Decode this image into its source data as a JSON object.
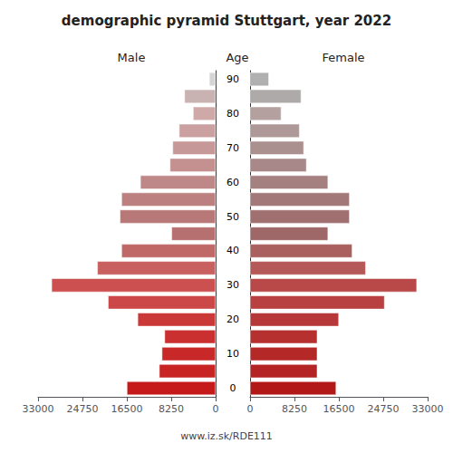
{
  "chart_data": {
    "type": "bar",
    "orientation": "horizontal",
    "title": "demographic pyramid Stuttgart, year 2022",
    "ylabel": "Age",
    "annotations": [
      "www.iz.sk/RDE111"
    ],
    "categories": [
      "0",
      null,
      "10",
      null,
      "20",
      null,
      "30",
      null,
      "40",
      null,
      "50",
      null,
      "60",
      null,
      "70",
      null,
      "80",
      null,
      "90"
    ],
    "series": [
      {
        "name": "Male",
        "values": [
          16500,
          10500,
          10000,
          9500,
          14500,
          20000,
          30500,
          22000,
          17500,
          8200,
          17800,
          17500,
          14000,
          8500,
          8000,
          6800,
          4200,
          5800,
          1200
        ],
        "colors": [
          "#c61a1a",
          "#c82424",
          "#c92828",
          "#ca3030",
          "#cb3838",
          "#cc4848",
          "#cd5050",
          "#c96060",
          "#c06868",
          "#b77070",
          "#b97878",
          "#bc8080",
          "#bf8888",
          "#c49090",
          "#c79898",
          "#cba0a0",
          "#cfa8a8",
          "#c9b2b2",
          "#d5d5d5"
        ]
      },
      {
        "name": "Female",
        "values": [
          16000,
          12500,
          12500,
          12500,
          16500,
          25000,
          31000,
          21500,
          19000,
          14500,
          18500,
          18500,
          14500,
          10500,
          10000,
          9200,
          5800,
          9500,
          3500
        ],
        "colors": [
          "#b21818",
          "#b42424",
          "#b52828",
          "#b63030",
          "#b73838",
          "#b84040",
          "#b94848",
          "#b55858",
          "#ab6060",
          "#9e6868",
          "#a07070",
          "#a27878",
          "#a58080",
          "#a88888",
          "#ab9090",
          "#af9898",
          "#b5a0a0",
          "#aeaaaa",
          "#b0b0b0"
        ]
      }
    ],
    "xlim": [
      0,
      33000
    ],
    "xticks": [
      0,
      8250,
      16500,
      24750,
      33000
    ],
    "grid": false
  }
}
